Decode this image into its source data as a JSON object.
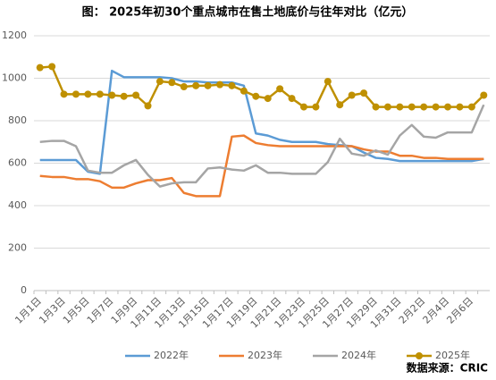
{
  "chart_data": {
    "type": "line",
    "title": "图：  2025年初30个重点城市在售土地底价与往年对比（亿元）",
    "source": "数据来源：CRIC",
    "categories": [
      "1月1日",
      null,
      "1月3日",
      null,
      "1月5日",
      null,
      "1月7日",
      null,
      "1月9日",
      null,
      "1月11日",
      null,
      "1月13日",
      null,
      "1月15日",
      null,
      "1月17日",
      null,
      "1月19日",
      null,
      "1月21日",
      null,
      "1月23日",
      null,
      "1月25日",
      null,
      "1月27日",
      null,
      "1月29日",
      null,
      "1月31日",
      null,
      "2月2日",
      null,
      "2月4日",
      null,
      "2月6日",
      null
    ],
    "ylim": [
      0,
      1200
    ],
    "yticks": [
      0,
      200,
      400,
      600,
      800,
      1000,
      1200
    ],
    "grid": true,
    "legend": "bottom",
    "series": [
      {
        "name": "2022年",
        "color": "#5b9bd5",
        "marker": false,
        "values": [
          615,
          615,
          615,
          615,
          560,
          550,
          1035,
          1005,
          1005,
          1005,
          1005,
          1000,
          985,
          985,
          980,
          980,
          980,
          965,
          740,
          730,
          710,
          700,
          700,
          700,
          690,
          685,
          680,
          650,
          625,
          620,
          610,
          610,
          610,
          610,
          610,
          610,
          610,
          620
        ]
      },
      {
        "name": "2023年",
        "color": "#ed7d31",
        "marker": false,
        "values": [
          540,
          535,
          535,
          525,
          525,
          515,
          485,
          485,
          505,
          520,
          520,
          530,
          460,
          445,
          445,
          445,
          725,
          730,
          695,
          685,
          680,
          680,
          680,
          680,
          680,
          680,
          680,
          665,
          655,
          655,
          635,
          635,
          625,
          625,
          620,
          620,
          620,
          620
        ]
      },
      {
        "name": "2024年",
        "color": "#a5a5a5",
        "marker": false,
        "values": [
          700,
          705,
          705,
          680,
          565,
          555,
          555,
          590,
          615,
          545,
          490,
          505,
          510,
          510,
          575,
          580,
          570,
          565,
          590,
          555,
          555,
          550,
          550,
          550,
          605,
          715,
          645,
          635,
          660,
          640,
          730,
          780,
          725,
          720,
          745,
          745,
          745,
          875
        ]
      },
      {
        "name": "2025年",
        "color": "#bf9000",
        "marker": true,
        "values": [
          1050,
          1055,
          925,
          925,
          925,
          925,
          920,
          915,
          920,
          870,
          985,
          980,
          960,
          965,
          965,
          970,
          965,
          940,
          915,
          905,
          950,
          905,
          865,
          865,
          985,
          875,
          920,
          930,
          865,
          865,
          865,
          865,
          865,
          865,
          865,
          865,
          865,
          920
        ]
      }
    ]
  }
}
